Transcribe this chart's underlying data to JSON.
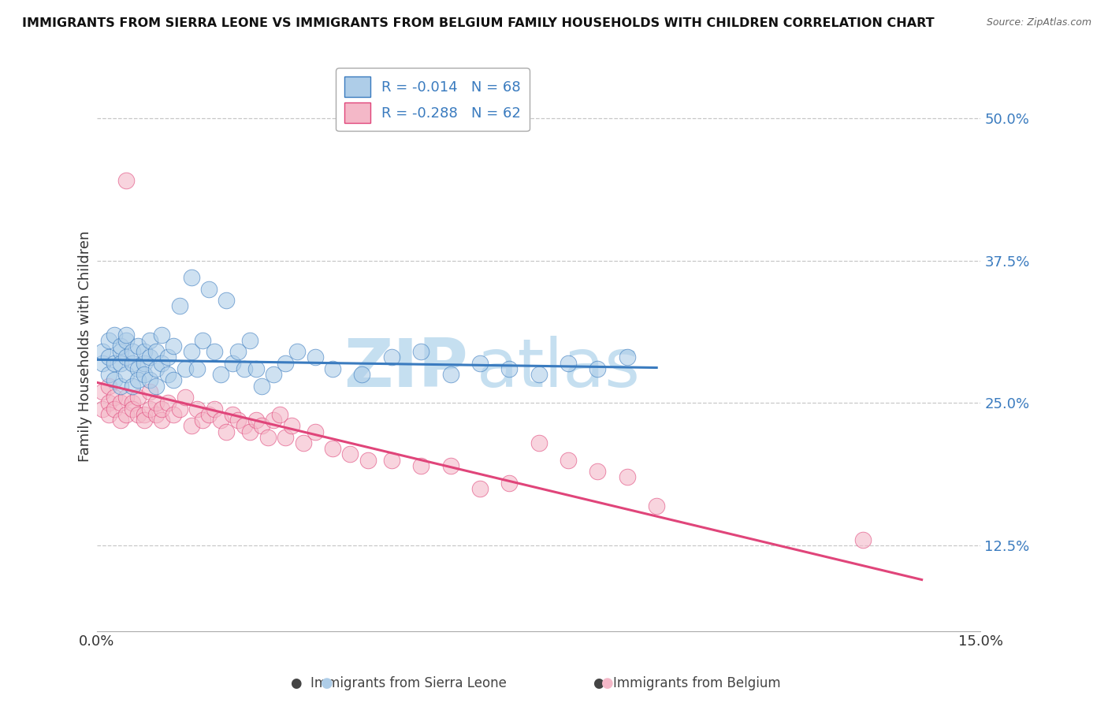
{
  "title": "IMMIGRANTS FROM SIERRA LEONE VS IMMIGRANTS FROM BELGIUM FAMILY HOUSEHOLDS WITH CHILDREN CORRELATION CHART",
  "source": "Source: ZipAtlas.com",
  "xlabel_blue": "Immigrants from Sierra Leone",
  "xlabel_pink": "Immigrants from Belgium",
  "ylabel": "Family Households with Children",
  "xlim": [
    0.0,
    0.15
  ],
  "ylim": [
    0.05,
    0.55
  ],
  "yticks": [
    0.125,
    0.25,
    0.375,
    0.5
  ],
  "ytick_labels": [
    "12.5%",
    "25.0%",
    "37.5%",
    "50.0%"
  ],
  "xticks": [
    0.0,
    0.15
  ],
  "xtick_labels": [
    "0.0%",
    "15.0%"
  ],
  "legend_R_blue": "R = -0.014",
  "legend_N_blue": "N = 68",
  "legend_R_pink": "R = -0.288",
  "legend_N_pink": "N = 62",
  "blue_color": "#aecde8",
  "pink_color": "#f4b8c8",
  "blue_line_color": "#3a7bbf",
  "pink_line_color": "#e0457a",
  "blue_scatter_x": [
    0.001,
    0.001,
    0.002,
    0.002,
    0.002,
    0.003,
    0.003,
    0.003,
    0.004,
    0.004,
    0.004,
    0.004,
    0.005,
    0.005,
    0.005,
    0.005,
    0.006,
    0.006,
    0.006,
    0.007,
    0.007,
    0.007,
    0.008,
    0.008,
    0.008,
    0.009,
    0.009,
    0.009,
    0.01,
    0.01,
    0.01,
    0.011,
    0.011,
    0.012,
    0.012,
    0.013,
    0.013,
    0.014,
    0.015,
    0.016,
    0.016,
    0.017,
    0.018,
    0.019,
    0.02,
    0.021,
    0.022,
    0.023,
    0.024,
    0.025,
    0.026,
    0.027,
    0.028,
    0.03,
    0.032,
    0.034,
    0.037,
    0.04,
    0.045,
    0.05,
    0.055,
    0.06,
    0.065,
    0.07,
    0.075,
    0.08,
    0.085,
    0.09
  ],
  "blue_scatter_y": [
    0.285,
    0.295,
    0.275,
    0.29,
    0.305,
    0.31,
    0.285,
    0.27,
    0.295,
    0.285,
    0.265,
    0.3,
    0.29,
    0.275,
    0.305,
    0.31,
    0.285,
    0.265,
    0.295,
    0.3,
    0.28,
    0.27,
    0.285,
    0.295,
    0.275,
    0.29,
    0.305,
    0.27,
    0.28,
    0.295,
    0.265,
    0.285,
    0.31,
    0.275,
    0.29,
    0.3,
    0.27,
    0.335,
    0.28,
    0.36,
    0.295,
    0.28,
    0.305,
    0.35,
    0.295,
    0.275,
    0.34,
    0.285,
    0.295,
    0.28,
    0.305,
    0.28,
    0.265,
    0.275,
    0.285,
    0.295,
    0.29,
    0.28,
    0.275,
    0.29,
    0.295,
    0.275,
    0.285,
    0.28,
    0.275,
    0.285,
    0.28,
    0.29
  ],
  "pink_scatter_x": [
    0.001,
    0.001,
    0.002,
    0.002,
    0.002,
    0.003,
    0.003,
    0.004,
    0.004,
    0.005,
    0.005,
    0.005,
    0.006,
    0.006,
    0.007,
    0.007,
    0.008,
    0.008,
    0.009,
    0.009,
    0.01,
    0.01,
    0.011,
    0.011,
    0.012,
    0.013,
    0.014,
    0.015,
    0.016,
    0.017,
    0.018,
    0.019,
    0.02,
    0.021,
    0.022,
    0.023,
    0.024,
    0.025,
    0.026,
    0.027,
    0.028,
    0.029,
    0.03,
    0.031,
    0.032,
    0.033,
    0.035,
    0.037,
    0.04,
    0.043,
    0.046,
    0.05,
    0.055,
    0.06,
    0.065,
    0.07,
    0.075,
    0.08,
    0.085,
    0.09,
    0.095,
    0.13
  ],
  "pink_scatter_y": [
    0.26,
    0.245,
    0.25,
    0.265,
    0.24,
    0.255,
    0.245,
    0.25,
    0.235,
    0.24,
    0.255,
    0.445,
    0.25,
    0.245,
    0.24,
    0.255,
    0.24,
    0.235,
    0.245,
    0.26,
    0.24,
    0.25,
    0.235,
    0.245,
    0.25,
    0.24,
    0.245,
    0.255,
    0.23,
    0.245,
    0.235,
    0.24,
    0.245,
    0.235,
    0.225,
    0.24,
    0.235,
    0.23,
    0.225,
    0.235,
    0.23,
    0.22,
    0.235,
    0.24,
    0.22,
    0.23,
    0.215,
    0.225,
    0.21,
    0.205,
    0.2,
    0.2,
    0.195,
    0.195,
    0.175,
    0.18,
    0.215,
    0.2,
    0.19,
    0.185,
    0.16,
    0.13
  ],
  "blue_trend_x": [
    0.0,
    0.095
  ],
  "blue_trend_y": [
    0.288,
    0.281
  ],
  "pink_trend_x": [
    0.0,
    0.14
  ],
  "pink_trend_y": [
    0.268,
    0.095
  ],
  "background_color": "#ffffff",
  "grid_color": "#c8c8c8",
  "watermark_zip": "ZIP",
  "watermark_atlas": "atlas",
  "watermark_color": "#c5dff0"
}
